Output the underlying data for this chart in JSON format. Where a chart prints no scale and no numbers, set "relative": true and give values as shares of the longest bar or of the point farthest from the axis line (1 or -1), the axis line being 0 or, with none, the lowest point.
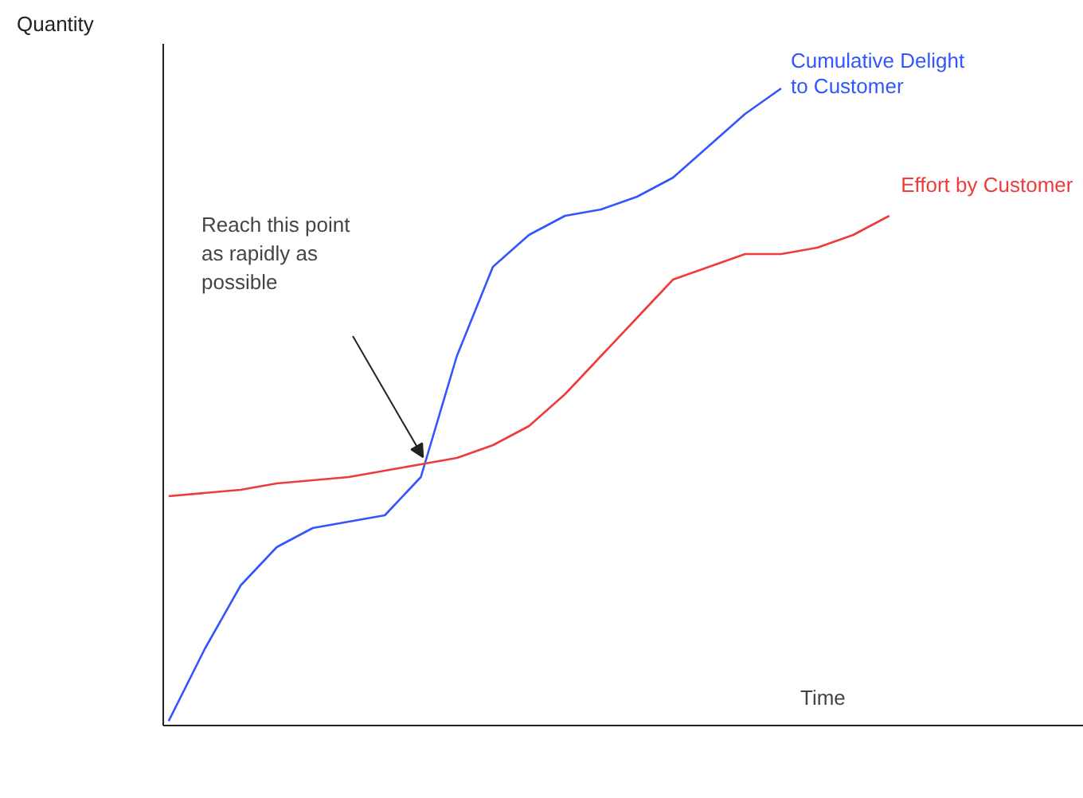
{
  "chart_data": {
    "type": "line",
    "relative": true,
    "xlabel": "Time",
    "ylabel": "Quantity",
    "legend": false,
    "categories": [
      null,
      null,
      null,
      null,
      null,
      null,
      null,
      null,
      null,
      null,
      null,
      null,
      null,
      null,
      null,
      null,
      null,
      null,
      null,
      null,
      null
    ],
    "series": [
      {
        "name": "Cumulative Delight to Customer",
        "color": "#3355ff",
        "values": [
          0.007,
          0.12,
          0.22,
          0.28,
          0.31,
          0.32,
          0.33,
          0.39,
          0.58,
          0.72,
          0.77,
          0.8,
          0.81,
          0.83,
          0.86,
          0.91,
          0.96,
          1.0,
          null,
          null,
          null
        ]
      },
      {
        "name": "Effort by Customer",
        "color": "#ee3b3b",
        "values": [
          0.36,
          0.365,
          0.37,
          0.38,
          0.385,
          0.39,
          0.4,
          0.41,
          0.42,
          0.44,
          0.47,
          0.52,
          0.58,
          0.64,
          0.7,
          0.72,
          0.74,
          0.74,
          0.75,
          0.77,
          0.8
        ]
      }
    ],
    "annotations": [
      "Reach this point as rapidly as possible"
    ]
  }
}
